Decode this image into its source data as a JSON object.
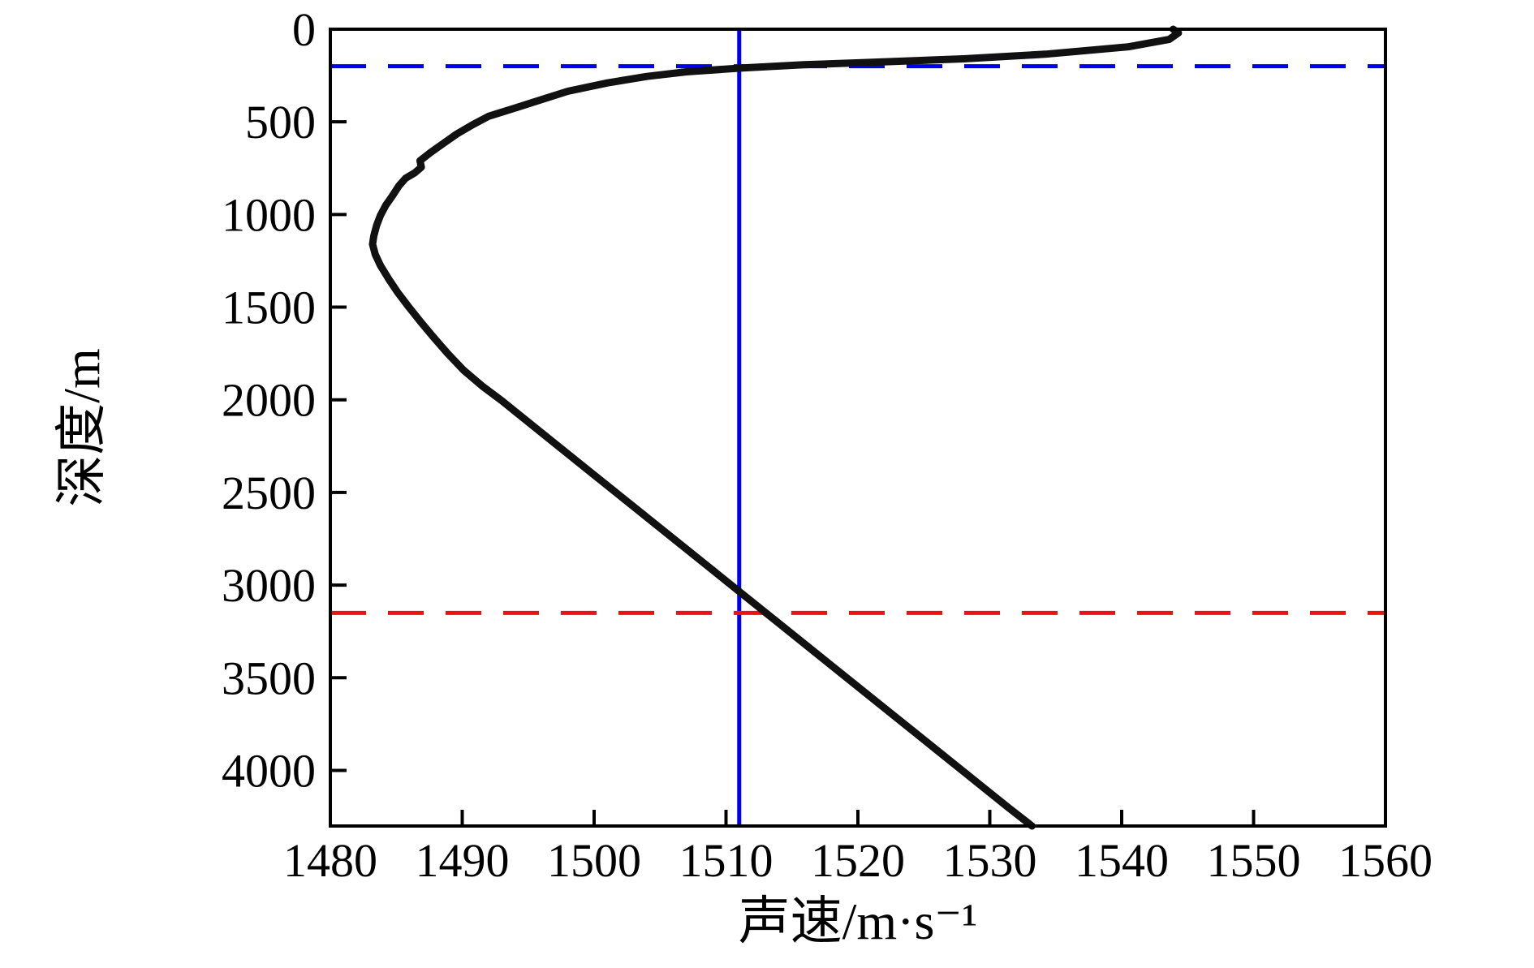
{
  "figure": {
    "background_color": "#ffffff",
    "curve_color": "#111111",
    "axis_color": "#000000",
    "blue_color": "#0000ee",
    "red_color": "#ee1111"
  },
  "chart_data": {
    "type": "line",
    "title": "",
    "xlabel": "声速/m·s⁻¹",
    "ylabel": "深度/m",
    "xlim": [
      1480,
      1560
    ],
    "ylim": [
      0,
      4300
    ],
    "y_axis_inverted": true,
    "grid": false,
    "legend": "none",
    "xticks": [
      1480,
      1490,
      1500,
      1510,
      1520,
      1530,
      1540,
      1550,
      1560
    ],
    "yticks": [
      0,
      500,
      1000,
      1500,
      2000,
      2500,
      3000,
      3500,
      4000
    ],
    "series": [
      {
        "name": "sound-speed-profile",
        "color": "#111111",
        "points_speed_depth": [
          [
            1543.9,
            0
          ],
          [
            1544.3,
            20
          ],
          [
            1543.6,
            55
          ],
          [
            1540.5,
            95
          ],
          [
            1534.2,
            135
          ],
          [
            1528.0,
            160
          ],
          [
            1520.5,
            180
          ],
          [
            1515.9,
            192
          ],
          [
            1511.0,
            210
          ],
          [
            1507.0,
            230
          ],
          [
            1504.0,
            255
          ],
          [
            1501.0,
            290
          ],
          [
            1498.0,
            335
          ],
          [
            1496.0,
            380
          ],
          [
            1493.8,
            430
          ],
          [
            1492.0,
            470
          ],
          [
            1490.8,
            515
          ],
          [
            1489.6,
            565
          ],
          [
            1488.6,
            615
          ],
          [
            1487.6,
            665
          ],
          [
            1486.8,
            710
          ],
          [
            1486.9,
            745
          ],
          [
            1486.4,
            775
          ],
          [
            1485.7,
            805
          ],
          [
            1485.2,
            845
          ],
          [
            1484.7,
            900
          ],
          [
            1484.2,
            950
          ],
          [
            1483.8,
            1005
          ],
          [
            1483.5,
            1060
          ],
          [
            1483.3,
            1115
          ],
          [
            1483.2,
            1160
          ],
          [
            1483.4,
            1215
          ],
          [
            1483.8,
            1275
          ],
          [
            1484.4,
            1345
          ],
          [
            1485.1,
            1420
          ],
          [
            1485.9,
            1495
          ],
          [
            1486.8,
            1575
          ],
          [
            1487.8,
            1660
          ],
          [
            1488.9,
            1750
          ],
          [
            1490.1,
            1840
          ],
          [
            1491.5,
            1925
          ],
          [
            1493.0,
            2005
          ],
          [
            1496.4,
            2200
          ],
          [
            1499.9,
            2400
          ],
          [
            1503.4,
            2600
          ],
          [
            1506.9,
            2800
          ],
          [
            1510.4,
            3000
          ],
          [
            1513.9,
            3200
          ],
          [
            1517.4,
            3400
          ],
          [
            1520.9,
            3600
          ],
          [
            1524.4,
            3800
          ],
          [
            1527.9,
            4000
          ],
          [
            1531.4,
            4200
          ],
          [
            1533.2,
            4300
          ]
        ]
      }
    ],
    "reference_lines": [
      {
        "name": "sonic-layer-depth-line",
        "orientation": "horizontal",
        "value": 200,
        "style": "dashed",
        "color": "#0000ee"
      },
      {
        "name": "layer-sound-speed-line",
        "orientation": "vertical",
        "value": 1511,
        "style": "solid",
        "color": "#0000ee"
      },
      {
        "name": "critical-depth-line",
        "orientation": "horizontal",
        "value": 3150,
        "style": "dashed",
        "color": "#ee1111"
      }
    ]
  }
}
